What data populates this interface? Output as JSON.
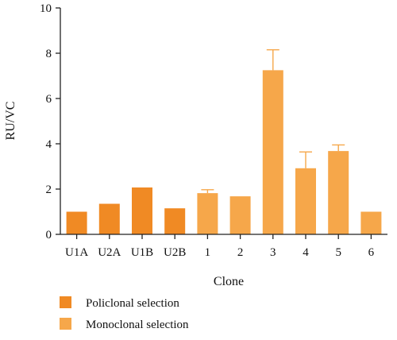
{
  "chart_data": {
    "type": "bar",
    "categories": [
      "U1A",
      "U2A",
      "U1B",
      "U2B",
      "1",
      "2",
      "3",
      "4",
      "5",
      "6"
    ],
    "values": [
      1.0,
      1.35,
      2.07,
      1.15,
      1.82,
      1.68,
      7.25,
      2.92,
      3.68,
      1.0
    ],
    "errors": [
      0,
      0,
      0,
      0,
      0.15,
      0,
      0.9,
      0.72,
      0.27,
      0
    ],
    "groups": [
      "Policlonal selection",
      "Policlonal selection",
      "Policlonal selection",
      "Policlonal selection",
      "Monoclonal selection",
      "Monoclonal selection",
      "Monoclonal selection",
      "Monoclonal selection",
      "Monoclonal selection",
      "Monoclonal selection"
    ],
    "xlabel": "Clone",
    "ylabel": "RU/VC",
    "ylim": [
      0,
      10
    ],
    "yticks": [
      0,
      2,
      4,
      6,
      8,
      10
    ],
    "legend": [
      {
        "name": "Policlonal selection",
        "color": "#F08A24"
      },
      {
        "name": "Monoclonal selection",
        "color": "#F6A74A"
      }
    ],
    "legend_position": "bottom-left",
    "grid": false
  }
}
